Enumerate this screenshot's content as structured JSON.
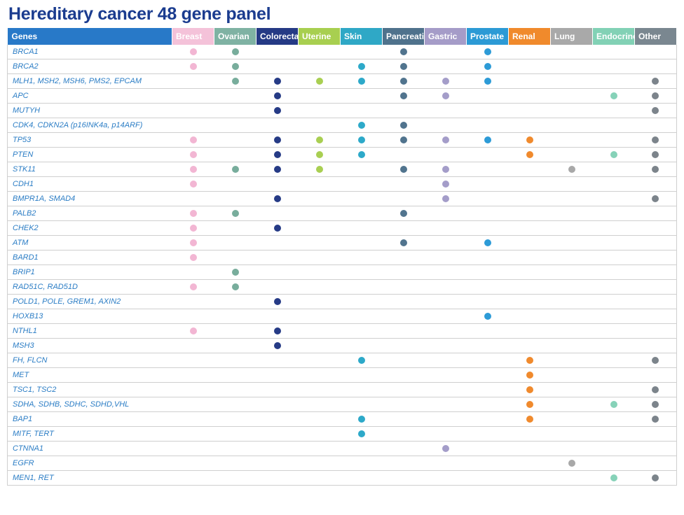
{
  "title": "Hereditary cancer 48 gene panel",
  "header": {
    "genes_label": "Genes",
    "genes_color": "#2879c8"
  },
  "categories": [
    {
      "key": "breast",
      "label": "Breast",
      "header_color": "#f4c2d9",
      "dot_color": "#f2b6d3"
    },
    {
      "key": "ovarian",
      "label": "Ovarian",
      "header_color": "#7fb2a3",
      "dot_color": "#78ad9c"
    },
    {
      "key": "colorectal",
      "label": "Colorectal",
      "header_color": "#253a85",
      "dot_color": "#263b86"
    },
    {
      "key": "uterine",
      "label": "Uterine",
      "header_color": "#a8cf50",
      "dot_color": "#a9cf52"
    },
    {
      "key": "skin",
      "label": "Skin",
      "header_color": "#2fa8c6",
      "dot_color": "#2da9c9"
    },
    {
      "key": "pancreatic",
      "label": "Pancreatic",
      "header_color": "#4f728c",
      "dot_color": "#51748e"
    },
    {
      "key": "gastric",
      "label": "Gastric",
      "header_color": "#a59cc8",
      "dot_color": "#a49dc9"
    },
    {
      "key": "prostate",
      "label": "Prostate",
      "header_color": "#2c9ad5",
      "dot_color": "#2d9bd7"
    },
    {
      "key": "renal",
      "label": "Renal",
      "header_color": "#f08a2c",
      "dot_color": "#f08a2d"
    },
    {
      "key": "lung",
      "label": "Lung",
      "header_color": "#a9a9a9",
      "dot_color": "#a8a8a8"
    },
    {
      "key": "endocrine",
      "label": "Endocrine",
      "header_color": "#82d1b5",
      "dot_color": "#86d2b8"
    },
    {
      "key": "other",
      "label": "Other",
      "header_color": "#7a8790",
      "dot_color": "#7c848b"
    }
  ],
  "rows": [
    {
      "gene": "BRCA1",
      "marks": [
        "breast",
        "ovarian",
        "pancreatic",
        "prostate"
      ]
    },
    {
      "gene": "BRCA2",
      "marks": [
        "breast",
        "ovarian",
        "skin",
        "pancreatic",
        "prostate"
      ]
    },
    {
      "gene": "MLH1, MSH2, MSH6, PMS2, EPCAM",
      "marks": [
        "ovarian",
        "colorectal",
        "uterine",
        "skin",
        "pancreatic",
        "gastric",
        "prostate",
        "other"
      ]
    },
    {
      "gene": "APC",
      "marks": [
        "colorectal",
        "pancreatic",
        "gastric",
        "endocrine",
        "other"
      ]
    },
    {
      "gene": "MUTYH",
      "marks": [
        "colorectal",
        "other"
      ]
    },
    {
      "gene": "CDK4, CDKN2A (p16INK4a, p14ARF)",
      "marks": [
        "skin",
        "pancreatic"
      ]
    },
    {
      "gene": "TP53",
      "marks": [
        "breast",
        "colorectal",
        "uterine",
        "skin",
        "pancreatic",
        "gastric",
        "prostate",
        "renal",
        "other"
      ]
    },
    {
      "gene": "PTEN",
      "marks": [
        "breast",
        "colorectal",
        "uterine",
        "skin",
        "renal",
        "endocrine",
        "other"
      ]
    },
    {
      "gene": "STK11",
      "marks": [
        "breast",
        "ovarian",
        "colorectal",
        "uterine",
        "pancreatic",
        "gastric",
        "lung",
        "other"
      ]
    },
    {
      "gene": "CDH1",
      "marks": [
        "breast",
        "gastric"
      ]
    },
    {
      "gene": "BMPR1A, SMAD4",
      "marks": [
        "colorectal",
        "gastric",
        "other"
      ]
    },
    {
      "gene": "PALB2",
      "marks": [
        "breast",
        "ovarian",
        "pancreatic"
      ]
    },
    {
      "gene": "CHEK2",
      "marks": [
        "breast",
        "colorectal"
      ]
    },
    {
      "gene": "ATM",
      "marks": [
        "breast",
        "pancreatic",
        "prostate"
      ]
    },
    {
      "gene": "BARD1",
      "marks": [
        "breast"
      ]
    },
    {
      "gene": "BRIP1",
      "marks": [
        "ovarian"
      ]
    },
    {
      "gene": "RAD51C, RAD51D",
      "marks": [
        "breast",
        "ovarian"
      ]
    },
    {
      "gene": "POLD1, POLE, GREM1, AXIN2",
      "marks": [
        "colorectal"
      ]
    },
    {
      "gene": "HOXB13",
      "marks": [
        "prostate"
      ]
    },
    {
      "gene": "NTHL1",
      "marks": [
        "breast",
        "colorectal"
      ]
    },
    {
      "gene": "MSH3",
      "marks": [
        "colorectal"
      ]
    },
    {
      "gene": "FH, FLCN",
      "marks": [
        "skin",
        "renal",
        "other"
      ]
    },
    {
      "gene": "MET",
      "marks": [
        "renal"
      ]
    },
    {
      "gene": "TSC1, TSC2",
      "marks": [
        "renal",
        "other"
      ]
    },
    {
      "gene": "SDHA, SDHB, SDHC, SDHD,VHL",
      "marks": [
        "renal",
        "endocrine",
        "other"
      ]
    },
    {
      "gene": "BAP1",
      "marks": [
        "skin",
        "renal",
        "other"
      ]
    },
    {
      "gene": "MITF, TERT",
      "marks": [
        "skin"
      ]
    },
    {
      "gene": "CTNNA1",
      "marks": [
        "gastric"
      ]
    },
    {
      "gene": "EGFR",
      "marks": [
        "lung"
      ]
    },
    {
      "gene": "MEN1, RET",
      "marks": [
        "endocrine",
        "other"
      ]
    }
  ]
}
